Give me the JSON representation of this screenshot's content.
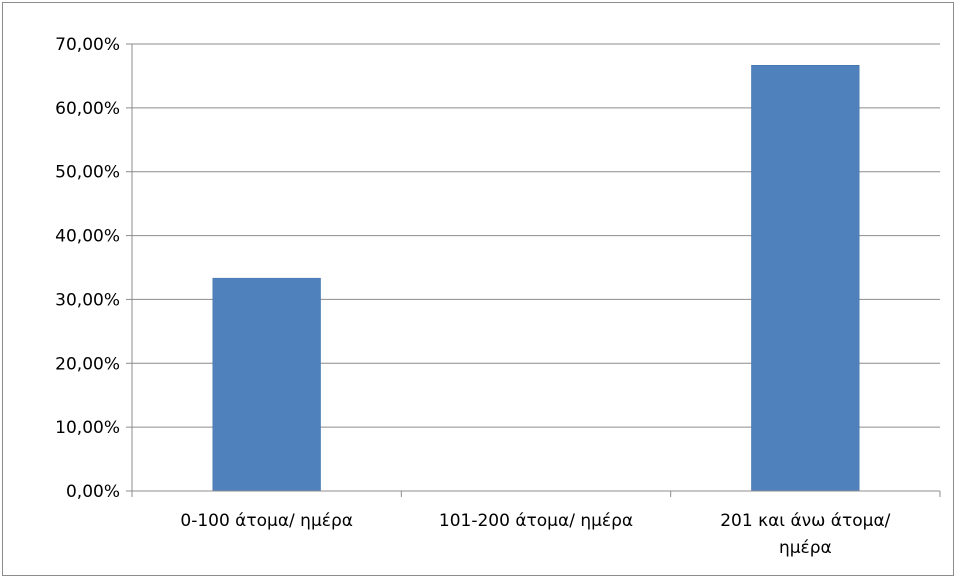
{
  "chart_data": {
    "type": "bar",
    "categories": [
      [
        "0-100 άτομα/ ημέρα"
      ],
      [
        "101-200 άτομα/ ημέρα"
      ],
      [
        "201 και άνω άτομα/",
        "ημέρα"
      ]
    ],
    "values": [
      33.33,
      0,
      66.67
    ],
    "ytick_labels": [
      "0,00%",
      "10,00%",
      "20,00%",
      "30,00%",
      "40,00%",
      "50,00%",
      "60,00%",
      "70,00%"
    ],
    "ylim": [
      0,
      70
    ],
    "grid": true,
    "legend": "none",
    "title": "",
    "xlabel": "",
    "ylabel": "",
    "colors": {
      "bar": "#4f81bd",
      "bar_edge": "#3f6fa6",
      "grid": "#8c8c8c",
      "axis": "#8c8c8c"
    }
  }
}
